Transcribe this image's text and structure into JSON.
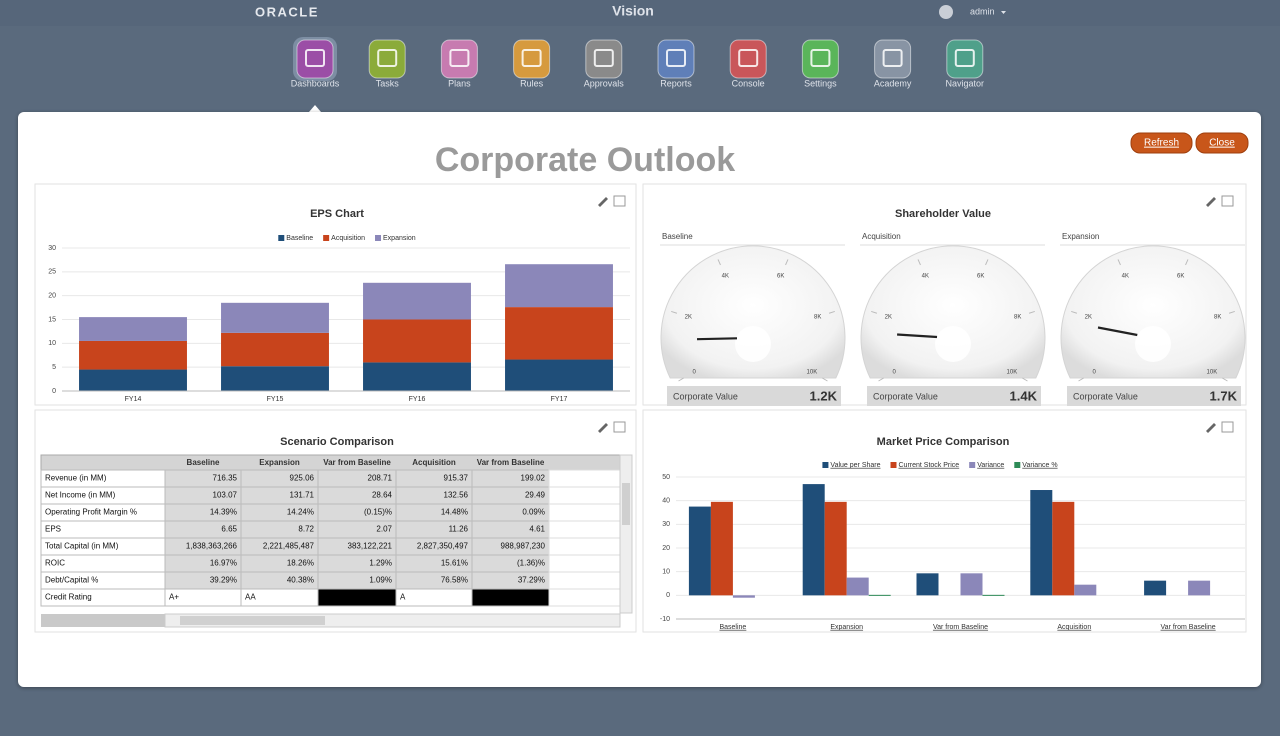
{
  "header": {
    "brand": "ORACLE",
    "app": "Vision",
    "user": "admin"
  },
  "nav": [
    "Dashboards",
    "Tasks",
    "Plans",
    "Rules",
    "Approvals",
    "Reports",
    "Console",
    "Settings",
    "Academy",
    "Navigator"
  ],
  "buttons": [
    "Refresh",
    "Close"
  ],
  "title": "Corporate Outlook",
  "chart_data": [
    {
      "type": "bar",
      "stacked": true,
      "title": "EPS Chart",
      "categories": [
        "FY14",
        "FY15",
        "FY16",
        "FY17"
      ],
      "series": [
        {
          "name": "Baseline",
          "color": "#1f4e79",
          "values": [
            4.5,
            5.2,
            6,
            6.6
          ]
        },
        {
          "name": "Acquisition",
          "color": "#c8441c",
          "values": [
            6,
            7,
            9,
            11
          ]
        },
        {
          "name": "Expansion",
          "color": "#8b87b9",
          "values": [
            5,
            6.3,
            7.7,
            9
          ]
        }
      ],
      "ylim": [
        0,
        30
      ],
      "yticks": [
        0,
        5,
        10,
        15,
        20,
        25,
        30
      ],
      "grid": true,
      "legend": "top"
    },
    {
      "type": "gauge",
      "title": "Shareholder Value",
      "categories": [
        "Baseline",
        "Acquisition",
        "Expansion"
      ],
      "label": "Corporate Value",
      "values": [
        1200,
        1400,
        1700
      ],
      "value_labels": [
        "1.2K",
        "1.4K",
        "1.7K"
      ],
      "ylim": [
        0,
        10000
      ],
      "yticks": [
        0,
        {
          "value": 2000,
          "label": "2K"
        },
        {
          "value": 4000,
          "label": "4K"
        },
        {
          "value": 6000,
          "label": "6K"
        },
        {
          "value": 8000,
          "label": "8K"
        },
        {
          "value": 10000,
          "label": "10K"
        }
      ]
    },
    {
      "type": "bar",
      "stacked": false,
      "title": "Market Price Comparison",
      "categories": [
        "Baseline",
        "Expansion",
        "Var from Baseline",
        "Acquisition",
        "Var from Baseline"
      ],
      "series": [
        {
          "name": "Value per Share",
          "color": "#1f4e79",
          "values": [
            37.5,
            47,
            9.3,
            44.5,
            6.2
          ]
        },
        {
          "name": "Current Stock Price",
          "color": "#c8441c",
          "values": [
            39.5,
            39.5,
            null,
            39.5,
            null
          ]
        },
        {
          "name": "Variance",
          "color": "#8b87b9",
          "values": [
            -1,
            7.5,
            9.3,
            4.5,
            6.2
          ]
        },
        {
          "name": "Variance %",
          "color": "#2e8b57",
          "values": [
            null,
            0.2,
            0.2,
            null,
            null
          ]
        }
      ],
      "ylim": [
        -10,
        50
      ],
      "yticks": [
        -10,
        0,
        10,
        20,
        30,
        40,
        50
      ],
      "grid": true,
      "legend": "top"
    }
  ],
  "table": {
    "title": "Scenario Comparison",
    "columns": [
      "Baseline",
      "Expansion",
      "Var from Baseline",
      "Acquisition",
      "Var from Baseline"
    ],
    "rows": [
      {
        "label": "Revenue (in MM)",
        "cells": [
          "716.35",
          "925.06",
          "208.71",
          "915.37",
          "199.02"
        ]
      },
      {
        "label": "Net Income (in MM)",
        "cells": [
          "103.07",
          "131.71",
          "28.64",
          "132.56",
          "29.49"
        ]
      },
      {
        "label": "Operating Profit Margin %",
        "cells": [
          "14.39%",
          "14.24%",
          "(0.15)%",
          "14.48%",
          "0.09%"
        ]
      },
      {
        "label": "EPS",
        "cells": [
          "6.65",
          "8.72",
          "2.07",
          "11.26",
          "4.61"
        ]
      },
      {
        "label": "Total Capital (in MM)",
        "cells": [
          "1,838,363,266",
          "2,221,485,487",
          "383,122,221",
          "2,827,350,497",
          "988,987,230"
        ]
      },
      {
        "label": "ROIC",
        "cells": [
          "16.97%",
          "18.26%",
          "1.29%",
          "15.61%",
          "(1.36)%"
        ]
      },
      {
        "label": "Debt/Capital %",
        "cells": [
          "39.29%",
          "40.38%",
          "1.09%",
          "76.58%",
          "37.29%"
        ]
      },
      {
        "label": "Credit Rating",
        "cells": [
          "A+",
          "AA",
          null,
          "A",
          null
        ]
      }
    ]
  }
}
